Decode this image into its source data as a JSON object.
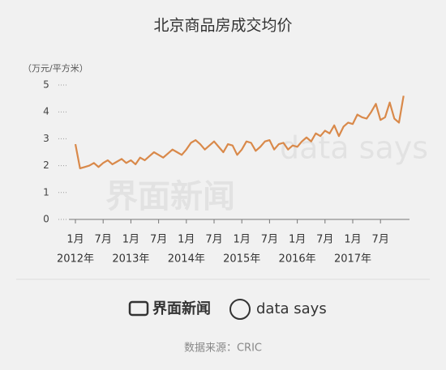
{
  "chart_data": {
    "type": "line",
    "title": "北京商品房成交均价",
    "y_label": "（万元/平方米）",
    "categories": [
      "1月",
      null,
      null,
      null,
      null,
      null,
      "7月",
      null,
      null,
      null,
      null,
      null,
      "1月",
      null,
      null,
      null,
      null,
      null,
      "7月",
      null,
      null,
      null,
      null,
      null,
      "1月",
      null,
      null,
      null,
      null,
      null,
      "7月",
      null,
      null,
      null,
      null,
      null,
      "1月",
      null,
      null,
      null,
      null,
      null,
      "7月",
      null,
      null,
      null,
      null,
      null,
      "1月",
      null,
      null,
      null,
      null,
      null,
      "7月",
      null,
      null,
      null,
      null,
      null,
      "1月",
      null,
      null,
      null,
      null,
      null,
      "7月",
      null,
      null,
      null,
      null,
      null
    ],
    "year_labels": [
      "2012年",
      "2013年",
      "2014年",
      "2015年",
      "2016年",
      "2017年"
    ],
    "series": [
      {
        "color": "#d9894a",
        "values": [
          2.8,
          1.9,
          1.95,
          2.0,
          2.1,
          1.95,
          2.1,
          2.2,
          2.05,
          2.15,
          2.25,
          2.1,
          2.2,
          2.05,
          2.3,
          2.2,
          2.35,
          2.5,
          2.4,
          2.3,
          2.45,
          2.6,
          2.5,
          2.4,
          2.6,
          2.85,
          2.95,
          2.8,
          2.6,
          2.75,
          2.9,
          2.7,
          2.5,
          2.8,
          2.75,
          2.4,
          2.6,
          2.9,
          2.85,
          2.55,
          2.7,
          2.9,
          2.95,
          2.6,
          2.8,
          2.85,
          2.6,
          2.75,
          2.7,
          2.9,
          3.05,
          2.9,
          3.2,
          3.1,
          3.3,
          3.2,
          3.5,
          3.1,
          3.45,
          3.6,
          3.55,
          3.9,
          3.8,
          3.75,
          4.0,
          4.3,
          3.7,
          3.8,
          4.35,
          3.75,
          3.6,
          4.6
        ]
      }
    ],
    "ylim": [
      0,
      5
    ],
    "yticks": [
      0,
      1,
      2,
      3,
      4,
      5
    ],
    "brand": "界面新闻",
    "brand2": "data says",
    "source": "数据来源：CRIC"
  }
}
